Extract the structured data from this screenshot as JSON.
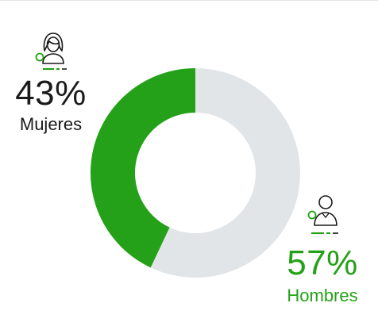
{
  "colors": {
    "female_slice": "#24a118",
    "male_slice": "#e2e5e7",
    "female_text": "#1a1a1a",
    "male_text": "#24a118",
    "icon_stroke": "#1a1a1a",
    "icon_accent": "#24a118"
  },
  "icons": {
    "female": "female-person-icon",
    "male": "male-person-icon"
  },
  "chart_data": {
    "type": "pie",
    "donut": true,
    "categories": [
      "Mujeres",
      "Hombres"
    ],
    "values": [
      43,
      57
    ],
    "labels": [
      "43%",
      "57%"
    ],
    "colors": [
      "#24a118",
      "#e2e5e7"
    ],
    "title": "",
    "legend": "none"
  }
}
